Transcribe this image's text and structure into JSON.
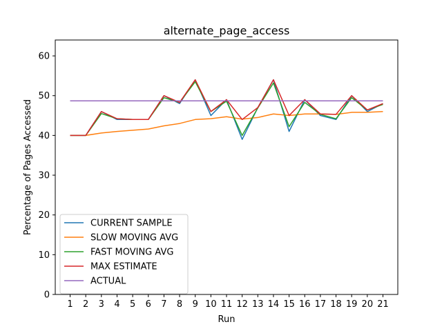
{
  "chart_data": {
    "type": "line",
    "title": "alternate_page_access",
    "xlabel": "Run",
    "ylabel": "Percentage of Pages Accessed",
    "x": [
      1,
      2,
      3,
      4,
      5,
      6,
      7,
      8,
      9,
      10,
      11,
      12,
      13,
      14,
      15,
      16,
      17,
      18,
      19,
      20,
      21
    ],
    "xlim": [
      0.05,
      21.95
    ],
    "ylim": [
      0,
      64
    ],
    "yticks": [
      0,
      10,
      20,
      30,
      40,
      50,
      60
    ],
    "grid": false,
    "legend_position": "lower-left",
    "series": [
      {
        "name": "CURRENT SAMPLE",
        "color": "#1f77b4",
        "values": [
          40,
          40,
          46,
          44,
          44,
          44,
          50,
          48,
          54,
          45,
          49,
          39,
          47,
          54,
          41,
          49,
          45,
          44,
          50,
          46,
          48
        ]
      },
      {
        "name": "SLOW MOVING AVG",
        "color": "#ff7f0e",
        "values": [
          40,
          40,
          40.6,
          41,
          41.3,
          41.6,
          42.4,
          43,
          44,
          44.2,
          44.7,
          44.1,
          44.5,
          45.4,
          45,
          45.4,
          45.4,
          45.3,
          45.8,
          45.8,
          46
        ]
      },
      {
        "name": "FAST MOVING AVG",
        "color": "#2ca02c",
        "values": [
          40,
          40,
          45.5,
          44.2,
          44,
          44,
          49.5,
          48.3,
          53.5,
          46,
          48.6,
          40,
          46.9,
          53.2,
          42.2,
          48.3,
          45.3,
          44.2,
          49.5,
          46.4,
          47.8
        ]
      },
      {
        "name": "MAX ESTIMATE",
        "color": "#d62728",
        "values": [
          40,
          40,
          46,
          44.2,
          44,
          44,
          50,
          48.3,
          54,
          46,
          49,
          44,
          47,
          54,
          45,
          49,
          45.4,
          45.3,
          50,
          46.4,
          48
        ]
      },
      {
        "name": "ACTUAL",
        "color": "#9467bd",
        "values": [
          48.7,
          48.7,
          48.7,
          48.7,
          48.7,
          48.7,
          48.7,
          48.7,
          48.7,
          48.7,
          48.7,
          48.7,
          48.7,
          48.7,
          48.7,
          48.7,
          48.7,
          48.7,
          48.7,
          48.7,
          48.7
        ]
      }
    ]
  }
}
